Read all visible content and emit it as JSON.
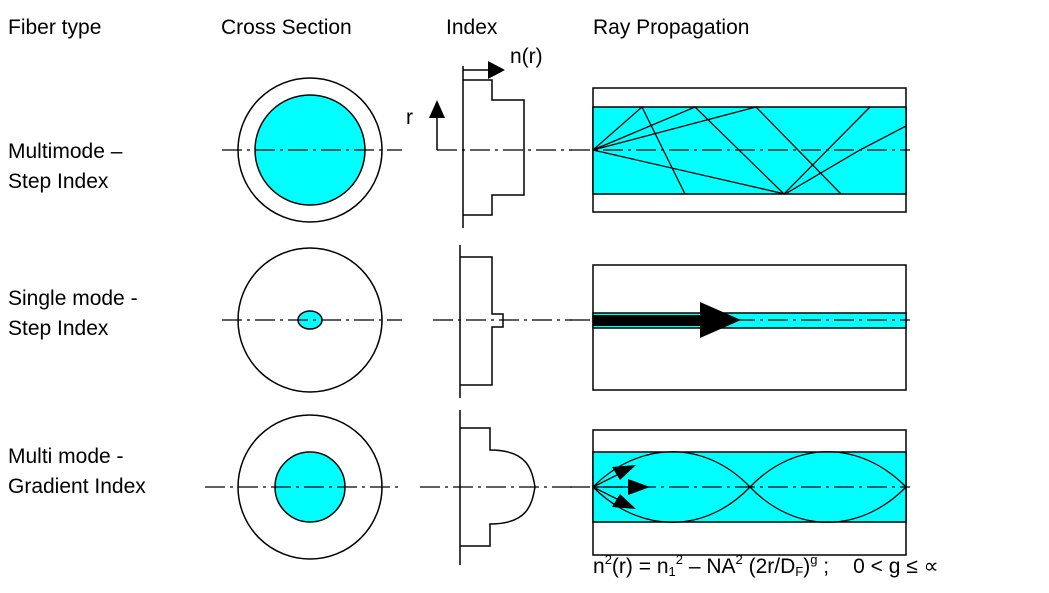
{
  "headers": {
    "fiber_type": "Fiber type",
    "cross_section": "Cross Section",
    "index": "Index",
    "ray_propagation": "Ray Propagation"
  },
  "axis_labels": {
    "n_of_r": "n(r)",
    "r": "r"
  },
  "rows": [
    {
      "label_line1": "Multimode –",
      "label_line2": "Step Index"
    },
    {
      "label_line1": "Single mode -",
      "label_line2": "Step Index"
    },
    {
      "label_line1": "Multi mode -",
      "label_line2": "Gradient Index"
    }
  ],
  "formula": {
    "n": "n",
    "sq": "2",
    "r_eq": "(r) = n",
    "sub1": "1",
    "minus_na": " – NA",
    "paren": " (2r/D",
    "subF": "F",
    "close": ")",
    "g": "g",
    "semi": " ;",
    "condition": "0 < g ≤ ∝"
  },
  "colors": {
    "core": "#00ffff",
    "cladding": "#ffffff",
    "line": "#000000"
  }
}
